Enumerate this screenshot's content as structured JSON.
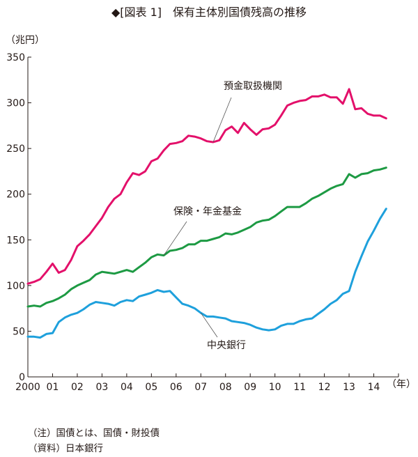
{
  "chart_data": {
    "type": "line",
    "title": "◆[図表 1]　保有主体別国債残高の推移",
    "ylabel": "（兆円）",
    "xlabel": "（年）",
    "ylim": [
      0,
      350
    ],
    "yticks": [
      0,
      50,
      100,
      150,
      200,
      250,
      300,
      350
    ],
    "xlim": [
      2000,
      2015
    ],
    "xticks": [
      {
        "label": "2000",
        "x": 2000
      },
      {
        "label": "01",
        "x": 2001
      },
      {
        "label": "02",
        "x": 2002
      },
      {
        "label": "03",
        "x": 2003
      },
      {
        "label": "04",
        "x": 2004
      },
      {
        "label": "05",
        "x": 2005
      },
      {
        "label": "06",
        "x": 2006
      },
      {
        "label": "07",
        "x": 2007
      },
      {
        "label": "08",
        "x": 2008
      },
      {
        "label": "09",
        "x": 2009
      },
      {
        "label": "10",
        "x": 2010
      },
      {
        "label": "11",
        "x": 2011
      },
      {
        "label": "12",
        "x": 2012
      },
      {
        "label": "13",
        "x": 2013
      },
      {
        "label": "14",
        "x": 2014
      }
    ],
    "grid": false,
    "series": [
      {
        "name": "預金取扱機関",
        "color": "#e3106a",
        "x": [
          2000.0,
          2000.25,
          2000.5,
          2000.75,
          2001.0,
          2001.25,
          2001.5,
          2001.75,
          2002.0,
          2002.25,
          2002.5,
          2002.75,
          2003.0,
          2003.25,
          2003.5,
          2003.75,
          2004.0,
          2004.25,
          2004.5,
          2004.75,
          2005.0,
          2005.25,
          2005.5,
          2005.75,
          2006.0,
          2006.25,
          2006.5,
          2006.75,
          2007.0,
          2007.25,
          2007.5,
          2007.75,
          2008.0,
          2008.25,
          2008.5,
          2008.75,
          2009.0,
          2009.25,
          2009.5,
          2009.75,
          2010.0,
          2010.25,
          2010.5,
          2010.75,
          2011.0,
          2011.25,
          2011.5,
          2011.75,
          2012.0,
          2012.25,
          2012.5,
          2012.75,
          2013.0,
          2013.25,
          2013.5,
          2013.75,
          2014.0,
          2014.25,
          2014.5
        ],
        "values": [
          102,
          104,
          107,
          115,
          124,
          114,
          117,
          128,
          143,
          149,
          156,
          165,
          174,
          186,
          195,
          200,
          213,
          223,
          221,
          225,
          236,
          239,
          248,
          255,
          256,
          258,
          264,
          263,
          261,
          258,
          257,
          259,
          270,
          274,
          267,
          278,
          271,
          265,
          271,
          272,
          276,
          286,
          297,
          300,
          302,
          303,
          307,
          307,
          309,
          306,
          306,
          299,
          315,
          293,
          294,
          288,
          286,
          286,
          283
        ]
      },
      {
        "name": "保険・年金基金",
        "color": "#1d9a43",
        "x": [
          2000.0,
          2000.25,
          2000.5,
          2000.75,
          2001.0,
          2001.25,
          2001.5,
          2001.75,
          2002.0,
          2002.25,
          2002.5,
          2002.75,
          2003.0,
          2003.25,
          2003.5,
          2003.75,
          2004.0,
          2004.25,
          2004.5,
          2004.75,
          2005.0,
          2005.25,
          2005.5,
          2005.75,
          2006.0,
          2006.25,
          2006.5,
          2006.75,
          2007.0,
          2007.25,
          2007.5,
          2007.75,
          2008.0,
          2008.25,
          2008.5,
          2008.75,
          2009.0,
          2009.25,
          2009.5,
          2009.75,
          2010.0,
          2010.25,
          2010.5,
          2010.75,
          2011.0,
          2011.25,
          2011.5,
          2011.75,
          2012.0,
          2012.25,
          2012.5,
          2012.75,
          2013.0,
          2013.25,
          2013.5,
          2013.75,
          2014.0,
          2014.25,
          2014.5
        ],
        "values": [
          77,
          78,
          77,
          81,
          83,
          86,
          90,
          96,
          100,
          103,
          106,
          112,
          115,
          114,
          113,
          115,
          117,
          115,
          120,
          125,
          131,
          134,
          133,
          138,
          139,
          141,
          145,
          145,
          149,
          149,
          151,
          153,
          157,
          156,
          158,
          161,
          164,
          169,
          171,
          172,
          176,
          181,
          186,
          186,
          186,
          190,
          195,
          198,
          202,
          206,
          209,
          211,
          222,
          218,
          222,
          223,
          226,
          227,
          229
        ]
      },
      {
        "name": "中央銀行",
        "color": "#1ea0dc",
        "x": [
          2000.0,
          2000.25,
          2000.5,
          2000.75,
          2001.0,
          2001.25,
          2001.5,
          2001.75,
          2002.0,
          2002.25,
          2002.5,
          2002.75,
          2003.0,
          2003.25,
          2003.5,
          2003.75,
          2004.0,
          2004.25,
          2004.5,
          2004.75,
          2005.0,
          2005.25,
          2005.5,
          2005.75,
          2006.0,
          2006.25,
          2006.5,
          2006.75,
          2007.0,
          2007.25,
          2007.5,
          2007.75,
          2008.0,
          2008.25,
          2008.5,
          2008.75,
          2009.0,
          2009.25,
          2009.5,
          2009.75,
          2010.0,
          2010.25,
          2010.5,
          2010.75,
          2011.0,
          2011.25,
          2011.5,
          2011.75,
          2012.0,
          2012.25,
          2012.5,
          2012.75,
          2013.0,
          2013.25,
          2013.5,
          2013.75,
          2014.0,
          2014.25,
          2014.5
        ],
        "values": [
          44,
          44,
          43,
          47,
          48,
          60,
          65,
          68,
          70,
          74,
          79,
          82,
          81,
          80,
          78,
          82,
          84,
          83,
          88,
          90,
          92,
          95,
          93,
          94,
          87,
          80,
          78,
          75,
          70,
          66,
          66,
          65,
          64,
          61,
          60,
          59,
          57,
          54,
          52,
          51,
          52,
          56,
          58,
          58,
          61,
          63,
          64,
          69,
          74,
          80,
          84,
          91,
          94,
          115,
          132,
          148,
          160,
          173,
          184
        ]
      }
    ],
    "annotations": [
      "預金取扱機関",
      "保険・年金基金",
      "中央銀行"
    ]
  },
  "notes": {
    "note_line": "（注）国債とは、国債・財投債",
    "source_line": "（資料）日本銀行"
  }
}
